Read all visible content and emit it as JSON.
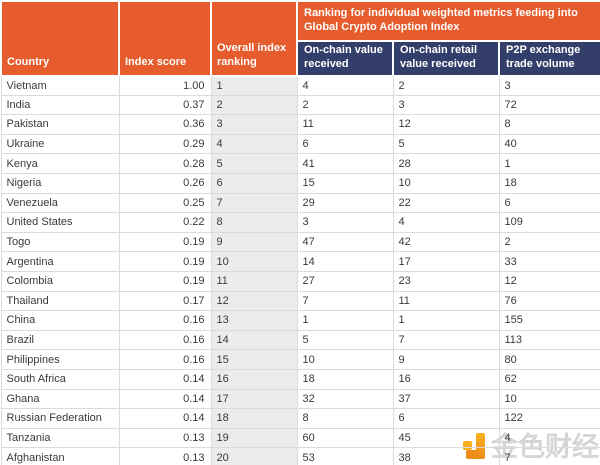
{
  "table": {
    "group_header": "Ranking for individual weighted metrics feeding into Global Crypto Adoption Index",
    "columns": [
      {
        "label": "Country"
      },
      {
        "label": "Index score"
      },
      {
        "label": "Overall index ranking"
      },
      {
        "label": "On-chain value received"
      },
      {
        "label": "On-chain retail value received"
      },
      {
        "label": "P2P exchange trade volume"
      }
    ],
    "rows": [
      {
        "country": "Vietnam",
        "index_score": "1.00",
        "overall_index_ranking": "1",
        "on_chain_value_received": "4",
        "on_chain_retail_value_received": "2",
        "p2p_exchange_trade_volume": "3"
      },
      {
        "country": "India",
        "index_score": "0.37",
        "overall_index_ranking": "2",
        "on_chain_value_received": "2",
        "on_chain_retail_value_received": "3",
        "p2p_exchange_trade_volume": "72"
      },
      {
        "country": "Pakistan",
        "index_score": "0.36",
        "overall_index_ranking": "3",
        "on_chain_value_received": "11",
        "on_chain_retail_value_received": "12",
        "p2p_exchange_trade_volume": "8"
      },
      {
        "country": "Ukraine",
        "index_score": "0.29",
        "overall_index_ranking": "4",
        "on_chain_value_received": "6",
        "on_chain_retail_value_received": "5",
        "p2p_exchange_trade_volume": "40"
      },
      {
        "country": "Kenya",
        "index_score": "0.28",
        "overall_index_ranking": "5",
        "on_chain_value_received": "41",
        "on_chain_retail_value_received": "28",
        "p2p_exchange_trade_volume": "1"
      },
      {
        "country": "Nigeria",
        "index_score": "0.26",
        "overall_index_ranking": "6",
        "on_chain_value_received": "15",
        "on_chain_retail_value_received": "10",
        "p2p_exchange_trade_volume": "18"
      },
      {
        "country": "Venezuela",
        "index_score": "0.25",
        "overall_index_ranking": "7",
        "on_chain_value_received": "29",
        "on_chain_retail_value_received": "22",
        "p2p_exchange_trade_volume": "6"
      },
      {
        "country": "United States",
        "index_score": "0.22",
        "overall_index_ranking": "8",
        "on_chain_value_received": "3",
        "on_chain_retail_value_received": "4",
        "p2p_exchange_trade_volume": "109"
      },
      {
        "country": "Togo",
        "index_score": "0.19",
        "overall_index_ranking": "9",
        "on_chain_value_received": "47",
        "on_chain_retail_value_received": "42",
        "p2p_exchange_trade_volume": "2"
      },
      {
        "country": "Argentina",
        "index_score": "0.19",
        "overall_index_ranking": "10",
        "on_chain_value_received": "14",
        "on_chain_retail_value_received": "17",
        "p2p_exchange_trade_volume": "33"
      },
      {
        "country": "Colombia",
        "index_score": "0.19",
        "overall_index_ranking": "11",
        "on_chain_value_received": "27",
        "on_chain_retail_value_received": "23",
        "p2p_exchange_trade_volume": "12"
      },
      {
        "country": "Thailand",
        "index_score": "0.17",
        "overall_index_ranking": "12",
        "on_chain_value_received": "7",
        "on_chain_retail_value_received": "11",
        "p2p_exchange_trade_volume": "76"
      },
      {
        "country": "China",
        "index_score": "0.16",
        "overall_index_ranking": "13",
        "on_chain_value_received": "1",
        "on_chain_retail_value_received": "1",
        "p2p_exchange_trade_volume": "155"
      },
      {
        "country": "Brazil",
        "index_score": "0.16",
        "overall_index_ranking": "14",
        "on_chain_value_received": "5",
        "on_chain_retail_value_received": "7",
        "p2p_exchange_trade_volume": "113"
      },
      {
        "country": "Philippines",
        "index_score": "0.16",
        "overall_index_ranking": "15",
        "on_chain_value_received": "10",
        "on_chain_retail_value_received": "9",
        "p2p_exchange_trade_volume": "80"
      },
      {
        "country": "South Africa",
        "index_score": "0.14",
        "overall_index_ranking": "16",
        "on_chain_value_received": "18",
        "on_chain_retail_value_received": "16",
        "p2p_exchange_trade_volume": "62"
      },
      {
        "country": "Ghana",
        "index_score": "0.14",
        "overall_index_ranking": "17",
        "on_chain_value_received": "32",
        "on_chain_retail_value_received": "37",
        "p2p_exchange_trade_volume": "10"
      },
      {
        "country": "Russian Federation",
        "index_score": "0.14",
        "overall_index_ranking": "18",
        "on_chain_value_received": "8",
        "on_chain_retail_value_received": "6",
        "p2p_exchange_trade_volume": "122"
      },
      {
        "country": "Tanzania",
        "index_score": "0.13",
        "overall_index_ranking": "19",
        "on_chain_value_received": "60",
        "on_chain_retail_value_received": "45",
        "p2p_exchange_trade_volume": "4"
      },
      {
        "country": "Afghanistan",
        "index_score": "0.13",
        "overall_index_ranking": "20",
        "on_chain_value_received": "53",
        "on_chain_retail_value_received": "38",
        "p2p_exchange_trade_volume": "7"
      }
    ]
  },
  "watermark": {
    "text": "金色财经"
  },
  "colors": {
    "header_orange": "#E65C2D",
    "header_navy": "#333E6A",
    "rank_column_bg": "#ECECEC",
    "grid_line": "#DBDBDB",
    "body_text": "#3A3A3A",
    "watermark_logo_orange": "#F5A01D"
  },
  "chart_data": {
    "type": "table",
    "title": "Global Crypto Adoption Index",
    "group_header": "Ranking for individual weighted metrics feeding into Global Crypto Adoption Index",
    "columns": [
      "Country",
      "Index score",
      "Overall index ranking",
      "On-chain value received",
      "On-chain retail value received",
      "P2P exchange trade volume"
    ],
    "rows": [
      [
        "Vietnam",
        1.0,
        1,
        4,
        2,
        3
      ],
      [
        "India",
        0.37,
        2,
        2,
        3,
        72
      ],
      [
        "Pakistan",
        0.36,
        3,
        11,
        12,
        8
      ],
      [
        "Ukraine",
        0.29,
        4,
        6,
        5,
        40
      ],
      [
        "Kenya",
        0.28,
        5,
        41,
        28,
        1
      ],
      [
        "Nigeria",
        0.26,
        6,
        15,
        10,
        18
      ],
      [
        "Venezuela",
        0.25,
        7,
        29,
        22,
        6
      ],
      [
        "United States",
        0.22,
        8,
        3,
        4,
        109
      ],
      [
        "Togo",
        0.19,
        9,
        47,
        42,
        2
      ],
      [
        "Argentina",
        0.19,
        10,
        14,
        17,
        33
      ],
      [
        "Colombia",
        0.19,
        11,
        27,
        23,
        12
      ],
      [
        "Thailand",
        0.17,
        12,
        7,
        11,
        76
      ],
      [
        "China",
        0.16,
        13,
        1,
        1,
        155
      ],
      [
        "Brazil",
        0.16,
        14,
        5,
        7,
        113
      ],
      [
        "Philippines",
        0.16,
        15,
        10,
        9,
        80
      ],
      [
        "South Africa",
        0.14,
        16,
        18,
        16,
        62
      ],
      [
        "Ghana",
        0.14,
        17,
        32,
        37,
        10
      ],
      [
        "Russian Federation",
        0.14,
        18,
        8,
        6,
        122
      ],
      [
        "Tanzania",
        0.13,
        19,
        60,
        45,
        4
      ],
      [
        "Afghanistan",
        0.13,
        20,
        53,
        38,
        7
      ]
    ]
  }
}
